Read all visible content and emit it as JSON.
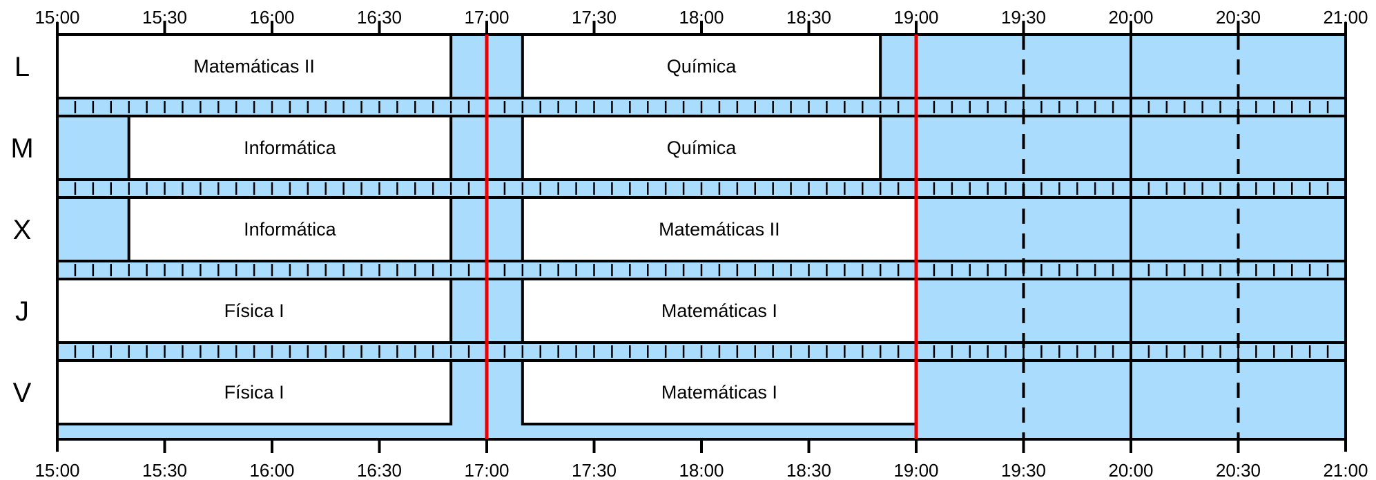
{
  "schedule": {
    "start_time": "15:00",
    "end_time": "21:00",
    "axis_ticks": [
      {
        "time": "15:00",
        "label": "15:00",
        "major": true
      },
      {
        "time": "15:30",
        "label": "15:30",
        "major": false
      },
      {
        "time": "16:00",
        "label": "16:00",
        "major": true
      },
      {
        "time": "16:30",
        "label": "16:30",
        "major": false
      },
      {
        "time": "17:00",
        "label": "17:00",
        "major": true
      },
      {
        "time": "17:30",
        "label": "17:30",
        "major": false
      },
      {
        "time": "18:00",
        "label": "18:00",
        "major": true
      },
      {
        "time": "18:30",
        "label": "18:30",
        "major": false
      },
      {
        "time": "19:00",
        "label": "19:00",
        "major": true
      },
      {
        "time": "19:30",
        "label": "19:30",
        "major": false
      },
      {
        "time": "20:00",
        "label": "20:00",
        "major": true
      },
      {
        "time": "20:30",
        "label": "20:30",
        "major": false
      },
      {
        "time": "21:00",
        "label": "21:00",
        "major": true
      }
    ],
    "days": [
      {
        "label": "L",
        "classes": [
          {
            "start": "15:00",
            "end": "16:50",
            "label": "Matemáticas II"
          },
          {
            "start": "17:10",
            "end": "18:50",
            "label": "Química"
          }
        ]
      },
      {
        "label": "M",
        "classes": [
          {
            "start": "15:20",
            "end": "16:50",
            "label": "Informática"
          },
          {
            "start": "17:10",
            "end": "18:50",
            "label": "Química"
          }
        ]
      },
      {
        "label": "X",
        "classes": [
          {
            "start": "15:20",
            "end": "16:50",
            "label": "Informática"
          },
          {
            "start": "17:10",
            "end": "19:00",
            "label": "Matemáticas II"
          }
        ]
      },
      {
        "label": "J",
        "classes": [
          {
            "start": "15:00",
            "end": "16:50",
            "label": "Física I"
          },
          {
            "start": "17:10",
            "end": "19:00",
            "label": "Matemáticas I"
          }
        ]
      },
      {
        "label": "V",
        "classes": [
          {
            "start": "15:00",
            "end": "16:50",
            "label": "Física I"
          },
          {
            "start": "17:10",
            "end": "19:00",
            "label": "Matemáticas I"
          }
        ]
      }
    ],
    "markers": [
      "17:00",
      "19:00"
    ],
    "colors": {
      "free": "#a9dcfd",
      "class": "#ffffff",
      "marker": "#ee0000",
      "line": "#000000"
    }
  }
}
